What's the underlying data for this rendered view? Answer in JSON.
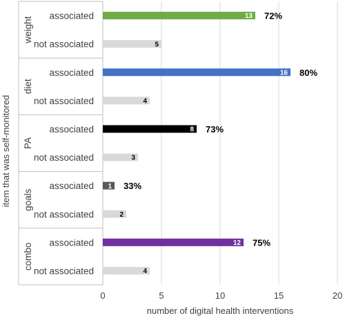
{
  "chart_data": {
    "type": "bar",
    "orientation": "horizontal",
    "xlabel": "number of digital health interventions",
    "ylabel": "item that was self-monitored",
    "xlim": [
      0,
      20
    ],
    "xticks": [
      "0",
      "5",
      "10",
      "15",
      "20"
    ],
    "grid": true,
    "groups": [
      {
        "name": "weight",
        "color": "#70ad47",
        "bars": [
          {
            "label": "associated",
            "value": 13,
            "value_label": "13",
            "percent": "72%"
          },
          {
            "label": "not associated",
            "value": 5,
            "value_label": "5",
            "percent": ""
          }
        ]
      },
      {
        "name": "diet",
        "color": "#4472c4",
        "bars": [
          {
            "label": "associated",
            "value": 16,
            "value_label": "16",
            "percent": "80%"
          },
          {
            "label": "not associated",
            "value": 4,
            "value_label": "4",
            "percent": ""
          }
        ]
      },
      {
        "name": "PA",
        "color": "#000000",
        "bars": [
          {
            "label": "associated",
            "value": 8,
            "value_label": "8",
            "percent": "73%"
          },
          {
            "label": "not associated",
            "value": 3,
            "value_label": "3",
            "percent": ""
          }
        ]
      },
      {
        "name": "goals",
        "color": "#595959",
        "bars": [
          {
            "label": "associated",
            "value": 1,
            "value_label": "1",
            "percent": "33%"
          },
          {
            "label": "not associated",
            "value": 2,
            "value_label": "2",
            "percent": ""
          }
        ]
      },
      {
        "name": "combo",
        "color": "#7030a0",
        "bars": [
          {
            "label": "associated",
            "value": 12,
            "value_label": "12",
            "percent": "75%"
          },
          {
            "label": "not associated",
            "value": 4,
            "value_label": "4",
            "percent": ""
          }
        ]
      }
    ],
    "not_associated_color": "#d9d9d9"
  }
}
